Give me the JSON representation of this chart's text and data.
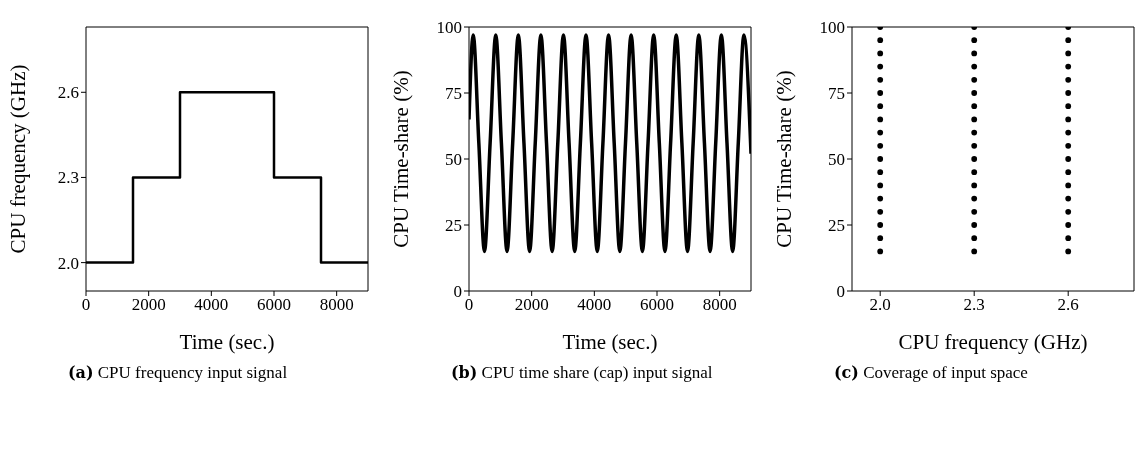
{
  "chart_data": [
    {
      "type": "step",
      "xlabel": "Time (sec.)",
      "ylabel": "CPU frequency (GHz)",
      "annotations": [
        "(a) CPU frequency input signal"
      ],
      "x": [
        0,
        1500,
        3000,
        6000,
        7500,
        9000
      ],
      "series": [
        {
          "color": "#000000",
          "values": [
            2.0,
            2.3,
            2.6,
            2.3,
            2.0,
            2.0
          ]
        }
      ],
      "xlim": [
        0,
        9000
      ],
      "xticks": [
        0,
        2000,
        4000,
        6000,
        8000
      ],
      "ylim": [
        1.9,
        2.83
      ],
      "yticks": [
        {
          "value": 2,
          "label": "2.0"
        },
        2.3,
        2.6
      ]
    },
    {
      "type": "line",
      "xlabel": "Time (sec.)",
      "ylabel": "CPU Time-share (%)",
      "annotations": [
        "(b) CPU time share (cap) input signal"
      ],
      "x": [
        0,
        134,
        314,
        494,
        674,
        854,
        1034,
        1214,
        1394,
        1574,
        1754,
        1934,
        2114,
        2294,
        2474,
        2654,
        2834,
        3014,
        3194,
        3374,
        3554,
        3734,
        3914,
        4094,
        4274,
        4454,
        4634,
        4814,
        4994,
        5174,
        5354,
        5534,
        5714,
        5894,
        6074,
        6254,
        6434,
        6614,
        6794,
        6974,
        7154,
        7334,
        7514,
        7694,
        7874,
        8054,
        8234,
        8414,
        8594,
        8774,
        9000
      ],
      "series": [
        {
          "color": "#000000",
          "values": [
            65,
            97,
            56,
            15,
            56,
            97,
            56,
            15,
            56,
            97,
            56,
            15,
            56,
            97,
            56,
            15,
            56,
            97,
            56,
            15,
            56,
            97,
            56,
            15,
            56,
            97,
            56,
            15,
            56,
            97,
            56,
            15,
            56,
            97,
            56,
            15,
            56,
            97,
            56,
            15,
            56,
            97,
            56,
            15,
            56,
            97,
            56,
            15,
            56,
            97,
            52
          ]
        }
      ],
      "xlim": [
        0,
        9000
      ],
      "xticks": [
        0,
        2000,
        4000,
        6000,
        8000
      ],
      "ylim": [
        0,
        100
      ],
      "yticks": [
        0,
        25,
        50,
        75,
        100
      ]
    },
    {
      "type": "scatter",
      "xlabel": "CPU frequency (GHz)",
      "ylabel": "CPU Time-share (%)",
      "annotations": [
        "(c) Coverage of input space"
      ],
      "marker": "circle",
      "x": [
        2,
        2,
        2,
        2,
        2,
        2,
        2,
        2,
        2,
        2,
        2,
        2,
        2,
        2,
        2,
        2,
        2,
        2,
        2.3,
        2.3,
        2.3,
        2.3,
        2.3,
        2.3,
        2.3,
        2.3,
        2.3,
        2.3,
        2.3,
        2.3,
        2.3,
        2.3,
        2.3,
        2.3,
        2.3,
        2.3,
        2.6,
        2.6,
        2.6,
        2.6,
        2.6,
        2.6,
        2.6,
        2.6,
        2.6,
        2.6,
        2.6,
        2.6,
        2.6,
        2.6,
        2.6,
        2.6,
        2.6,
        2.6
      ],
      "series": [
        {
          "color": "#000000",
          "values": [
            15,
            20,
            25,
            30,
            35,
            40,
            45,
            50,
            55,
            60,
            65,
            70,
            75,
            80,
            85,
            90,
            95,
            100,
            15,
            20,
            25,
            30,
            35,
            40,
            45,
            50,
            55,
            60,
            65,
            70,
            75,
            80,
            85,
            90,
            95,
            100,
            15,
            20,
            25,
            30,
            35,
            40,
            45,
            50,
            55,
            60,
            65,
            70,
            75,
            80,
            85,
            90,
            95,
            100
          ]
        }
      ],
      "xlim": [
        1.91,
        2.81
      ],
      "xticks": [
        {
          "value": 2,
          "label": "2.0"
        },
        2.3,
        2.6
      ],
      "ylim": [
        0,
        100
      ],
      "yticks": [
        0,
        25,
        50,
        75,
        100
      ]
    }
  ]
}
